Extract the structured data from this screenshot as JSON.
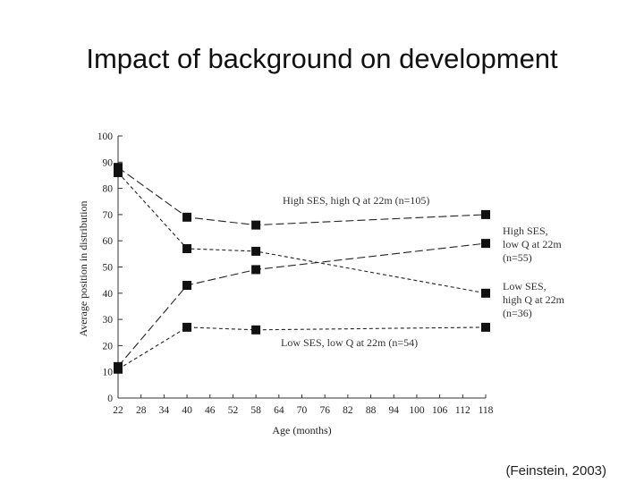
{
  "slide": {
    "title": "Impact of background on development",
    "citation": "(Feinstein, 2003)"
  },
  "chart_data": {
    "type": "line",
    "title": "",
    "xlabel": "Age (months)",
    "ylabel": "Average position in distribution",
    "xlim": [
      22,
      118
    ],
    "ylim": [
      0,
      100
    ],
    "xticks": [
      22,
      28,
      34,
      40,
      46,
      52,
      58,
      64,
      70,
      76,
      82,
      88,
      94,
      100,
      106,
      112,
      118
    ],
    "yticks": [
      0,
      10,
      20,
      30,
      40,
      50,
      60,
      70,
      80,
      90,
      100
    ],
    "grid": false,
    "legend": "none",
    "marker": "square",
    "series": [
      {
        "name": "High SES, high Q at 22m (n=105)",
        "dash": "long-dash",
        "x": [
          22,
          40,
          58,
          118
        ],
        "y": [
          88,
          69,
          66,
          70
        ]
      },
      {
        "name": "High SES, low Q at 22m (n=55)",
        "dash": "long-dash",
        "x": [
          22,
          40,
          58,
          118
        ],
        "y": [
          12,
          43,
          49,
          59
        ]
      },
      {
        "name": "Low SES, high Q at 22m (n=36)",
        "dash": "short-dash",
        "x": [
          22,
          40,
          58,
          118
        ],
        "y": [
          86,
          57,
          56,
          40
        ]
      },
      {
        "name": "Low SES, low Q at 22m (n=54)",
        "dash": "short-dash",
        "x": [
          22,
          40,
          58,
          118
        ],
        "y": [
          11,
          27,
          26,
          27
        ]
      }
    ],
    "annotations": [
      {
        "lines": [
          "High SES, high Q at 22m (n=105)"
        ],
        "series": 0
      },
      {
        "lines": [
          "High SES,",
          "low Q at 22m",
          "(n=55)"
        ],
        "series": 1
      },
      {
        "lines": [
          "Low SES,",
          "high Q at 22m",
          "(n=36)"
        ],
        "series": 2
      },
      {
        "lines": [
          "Low SES, low Q at 22m (n=54)"
        ],
        "series": 3
      }
    ]
  }
}
